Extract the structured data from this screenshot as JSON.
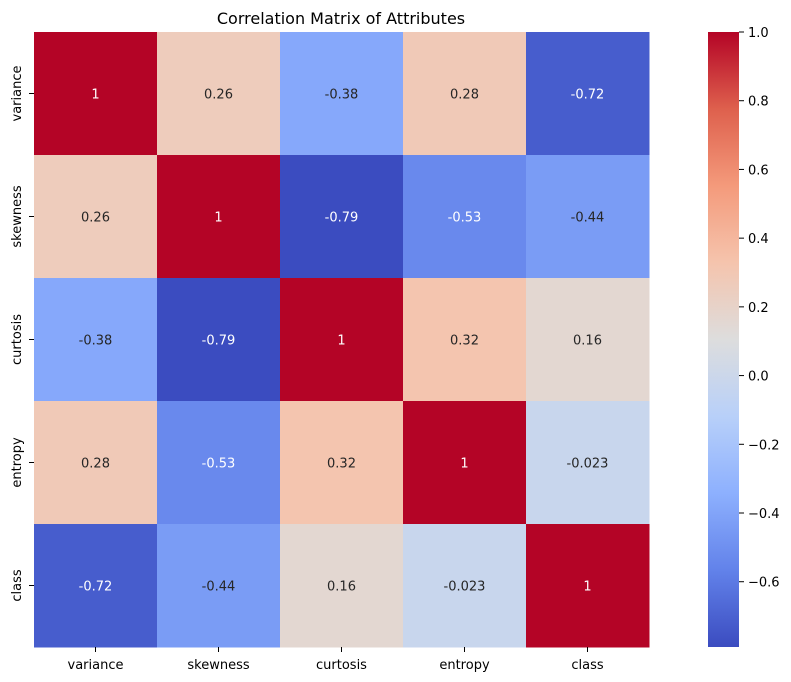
{
  "chart_data": {
    "type": "heatmap",
    "title": "Correlation Matrix of Attributes",
    "xlabel": "",
    "ylabel": "",
    "categories": [
      "variance",
      "skewness",
      "curtosis",
      "entropy",
      "class"
    ],
    "rows": [
      "variance",
      "skewness",
      "curtosis",
      "entropy",
      "class"
    ],
    "values": [
      [
        1,
        0.26,
        -0.38,
        0.28,
        -0.72
      ],
      [
        0.26,
        1,
        -0.79,
        -0.53,
        -0.44
      ],
      [
        -0.38,
        -0.79,
        1,
        0.32,
        0.16
      ],
      [
        0.28,
        -0.53,
        0.32,
        1,
        -0.023
      ],
      [
        -0.72,
        -0.44,
        0.16,
        -0.023,
        1
      ]
    ],
    "labels": [
      [
        "1",
        "0.26",
        "-0.38",
        "0.28",
        "-0.72"
      ],
      [
        "0.26",
        "1",
        "-0.79",
        "-0.53",
        "-0.44"
      ],
      [
        "-0.38",
        "-0.79",
        "1",
        "0.32",
        "0.16"
      ],
      [
        "0.28",
        "-0.53",
        "0.32",
        "1",
        "-0.023"
      ],
      [
        "-0.72",
        "-0.44",
        "0.16",
        "-0.023",
        "1"
      ]
    ],
    "colormap": "coolwarm",
    "vmin": -0.79,
    "vmax": 1.0,
    "colorbar_ticks": [
      -0.6,
      -0.4,
      -0.2,
      0.0,
      0.2,
      0.4,
      0.6,
      0.8,
      1.0
    ],
    "colorbar_tick_labels": [
      "−0.6",
      "−0.4",
      "−0.2",
      "0.0",
      "0.2",
      "0.4",
      "0.6",
      "0.8",
      "1.0"
    ],
    "colorbar_position": "right",
    "grid": false
  }
}
